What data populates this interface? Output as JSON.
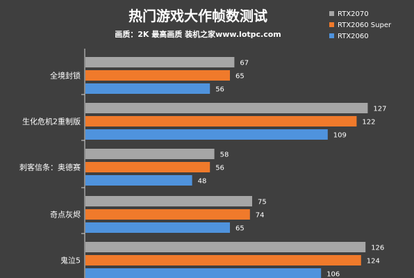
{
  "chart_data": {
    "type": "bar",
    "orientation": "horizontal",
    "title": "热门游戏大作帧数测试",
    "subtitle": "画质：2K 最高画质 装机之家www.lotpc.com",
    "categories": [
      "全境封锁",
      "生化危机2重制版",
      "刺客信条：奥德赛",
      "奇点灰烬",
      "鬼泣5"
    ],
    "series": [
      {
        "name": "RTX2070",
        "color": "#a6a6a6",
        "values": [
          67,
          127,
          58,
          75,
          126
        ]
      },
      {
        "name": "RTX2060 Super",
        "color": "#f07a2b",
        "values": [
          65,
          122,
          56,
          74,
          124
        ]
      },
      {
        "name": "RTX2060",
        "color": "#4f93dd",
        "values": [
          56,
          109,
          48,
          65,
          106
        ]
      }
    ],
    "xlim": [
      0,
      135
    ],
    "grid": false,
    "legend_position": "top-right"
  }
}
